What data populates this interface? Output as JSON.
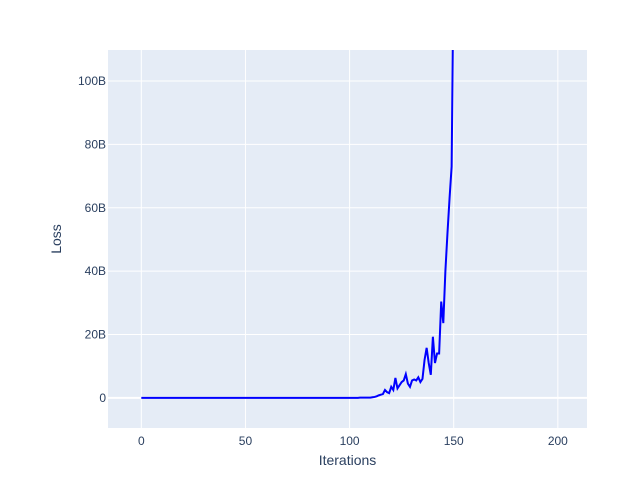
{
  "chart_data": {
    "type": "line",
    "title": "",
    "xlabel": "Iterations",
    "ylabel": "Loss",
    "xlim": [
      -16,
      214
    ],
    "ylim": [
      -9500000000.0,
      109800000000.0
    ],
    "xticks": [
      0,
      50,
      100,
      150,
      200
    ],
    "xtick_labels": [
      "0",
      "50",
      "100",
      "150",
      "200"
    ],
    "yticks": [
      0,
      20000000000.0,
      40000000000.0,
      60000000000.0,
      80000000000.0,
      100000000000.0
    ],
    "ytick_labels": [
      "0",
      "20B",
      "40B",
      "60B",
      "80B",
      "100B"
    ],
    "grid": true,
    "legend": "none",
    "colors": {
      "line": "#0000ff",
      "plot_bg": "#e5ecf6",
      "grid": "#ffffff",
      "text": "#2a3f5f"
    },
    "series": [
      {
        "x_start": 0,
        "x_step": 1,
        "values": [
          0,
          0,
          0,
          0,
          0,
          0,
          0,
          0,
          0,
          0,
          0,
          0,
          0,
          0,
          0,
          0,
          0,
          0,
          0,
          0,
          0,
          0,
          0,
          0,
          0,
          0,
          0,
          0,
          0,
          0,
          0,
          0,
          0,
          0,
          0,
          0,
          0,
          0,
          0,
          0,
          0,
          0,
          0,
          0,
          0,
          0,
          0,
          0,
          0,
          0,
          0,
          0,
          0,
          0,
          0,
          0,
          0,
          0,
          0,
          0,
          0,
          0,
          0,
          0,
          0,
          0,
          0,
          0,
          0,
          0,
          0,
          0,
          0,
          0,
          0,
          0,
          0,
          0,
          0,
          0,
          0,
          0,
          0,
          0,
          0,
          0,
          0,
          0,
          0,
          0,
          0,
          0,
          0,
          0,
          0,
          0,
          0,
          0,
          0,
          0,
          0,
          0,
          0,
          0,
          0,
          100000000.0,
          100000000.0,
          100000000.0,
          100000000.0,
          100000000.0,
          100000000.0,
          200000000.0,
          300000000.0,
          500000000.0,
          800000000.0,
          1000000000.0,
          1200000000.0,
          2500000000.0,
          1800000000.0,
          1500000000.0,
          3500000000.0,
          2500000000.0,
          6300000000.0,
          3000000000.0,
          4000000000.0,
          5000000000.0,
          5500000000.0,
          7500000000.0,
          4500000000.0,
          3500000000.0,
          5500000000.0,
          5800000000.0,
          5500000000.0,
          6500000000.0,
          5000000000.0,
          6000000000.0,
          12000000000.0,
          15800000000.0,
          11000000000.0,
          7300000000.0,
          19300000000.0,
          11000000000.0,
          14000000000.0,
          14000000000.0,
          30400000000.0,
          23600000000.0,
          40000000000.0,
          52000000000.0,
          63000000000.0,
          73000000000.0,
          140000000000.0
        ]
      }
    ]
  }
}
